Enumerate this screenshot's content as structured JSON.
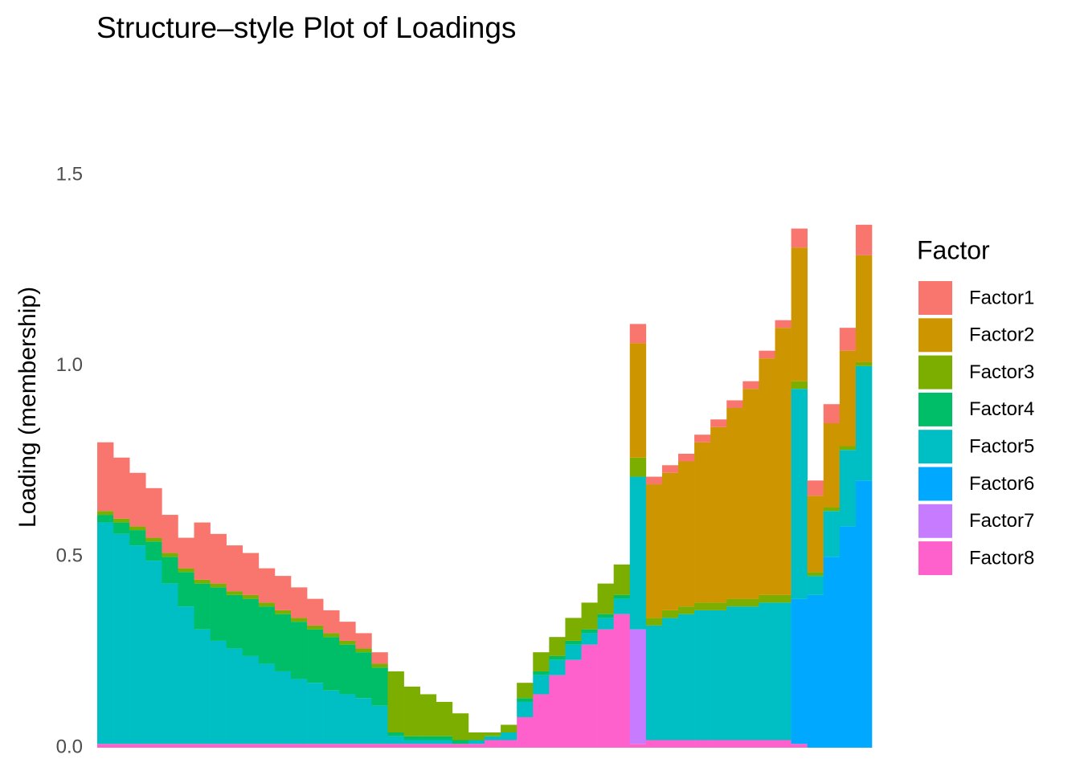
{
  "chart_data": {
    "type": "stacked-bar",
    "title": "Structure–style Plot of Loadings",
    "y_label": "Loading (membership)",
    "legend_title": "Factor",
    "legend_position": "right",
    "ylim": [
      0,
      1.72
    ],
    "yticks": [
      {
        "value": 0,
        "label": "0.0"
      },
      0.5,
      {
        "value": 1,
        "label": "1.0"
      },
      1.5
    ],
    "categories": [
      null,
      null,
      null,
      null,
      null,
      null,
      null,
      null,
      null,
      null,
      null,
      null,
      null,
      null,
      null,
      null,
      null,
      null,
      null,
      null,
      null,
      null,
      null,
      null,
      null,
      null,
      null,
      null,
      null,
      null,
      null,
      null,
      null,
      null,
      null,
      null,
      null,
      null,
      null,
      null,
      null,
      null,
      null,
      null,
      null,
      null,
      null,
      null
    ],
    "series": [
      {
        "name": "Factor1",
        "color": "#F8766D",
        "values": [
          0.18,
          0.16,
          0.14,
          0.13,
          0.1,
          0.08,
          0.15,
          0.13,
          0.12,
          0.11,
          0.09,
          0.09,
          0.08,
          0.07,
          0.06,
          0.05,
          0.04,
          0.03,
          0,
          0,
          0,
          0,
          0,
          0,
          0,
          0,
          0,
          0,
          0,
          0,
          0,
          0,
          0,
          0.05,
          0.02,
          0.02,
          0.02,
          0.02,
          0.02,
          0.02,
          0.02,
          0.02,
          0.02,
          0.05,
          0.04,
          0.05,
          0.06,
          0.08
        ]
      },
      {
        "name": "Factor2",
        "color": "#CD9600",
        "values": [
          0,
          0,
          0,
          0,
          0,
          0,
          0,
          0,
          0,
          0,
          0,
          0,
          0,
          0,
          0,
          0,
          0,
          0,
          0,
          0,
          0,
          0,
          0,
          0,
          0,
          0,
          0,
          0,
          0,
          0,
          0,
          0,
          0,
          0.3,
          0.35,
          0.36,
          0.38,
          0.42,
          0.46,
          0.5,
          0.55,
          0.62,
          0.7,
          0.35,
          0.2,
          0.22,
          0.25,
          0.28
        ]
      },
      {
        "name": "Factor3",
        "color": "#7CAE00",
        "values": [
          0.01,
          0.01,
          0.01,
          0.01,
          0.01,
          0.01,
          0.01,
          0.01,
          0.01,
          0.01,
          0.01,
          0.01,
          0.01,
          0.01,
          0.01,
          0.01,
          0.01,
          0.01,
          0.16,
          0.13,
          0.11,
          0.09,
          0.07,
          0.02,
          0.01,
          0.02,
          0.04,
          0.05,
          0.05,
          0.06,
          0.07,
          0.08,
          0.08,
          0.05,
          0.02,
          0.02,
          0.02,
          0.02,
          0.02,
          0.02,
          0.02,
          0.02,
          0.02,
          0.02,
          0.01,
          0.01,
          0.01,
          0.01
        ]
      },
      {
        "name": "Factor4",
        "color": "#00BE67",
        "values": [
          0.02,
          0.03,
          0.04,
          0.05,
          0.07,
          0.09,
          0.12,
          0.14,
          0.14,
          0.15,
          0.15,
          0.15,
          0.15,
          0.14,
          0.14,
          0.13,
          0.12,
          0.1,
          0.01,
          0.01,
          0.01,
          0.01,
          0.01,
          0,
          0,
          0,
          0.01,
          0.01,
          0.01,
          0.01,
          0.01,
          0.01,
          0.01,
          0,
          0,
          0,
          0,
          0,
          0,
          0,
          0,
          0,
          0,
          0,
          0,
          0,
          0,
          0
        ]
      },
      {
        "name": "Factor5",
        "color": "#00BFC4",
        "values": [
          0.58,
          0.55,
          0.52,
          0.48,
          0.42,
          0.36,
          0.3,
          0.27,
          0.25,
          0.23,
          0.21,
          0.19,
          0.17,
          0.16,
          0.14,
          0.13,
          0.12,
          0.1,
          0.02,
          0.01,
          0.01,
          0.01,
          0,
          0.01,
          0.01,
          0.02,
          0.04,
          0.05,
          0.04,
          0.04,
          0.03,
          0.03,
          0.04,
          0.4,
          0.3,
          0.32,
          0.33,
          0.34,
          0.34,
          0.35,
          0.35,
          0.36,
          0.36,
          0.55,
          0.05,
          0.12,
          0.2,
          0.3
        ]
      },
      {
        "name": "Factor6",
        "color": "#00A9FF",
        "values": [
          0,
          0,
          0,
          0,
          0,
          0,
          0,
          0,
          0,
          0,
          0,
          0,
          0,
          0,
          0,
          0,
          0,
          0,
          0,
          0,
          0,
          0,
          0,
          0,
          0,
          0,
          0,
          0,
          0,
          0,
          0,
          0,
          0,
          0,
          0,
          0,
          0,
          0,
          0,
          0,
          0,
          0,
          0,
          0.38,
          0.4,
          0.5,
          0.58,
          0.7
        ]
      },
      {
        "name": "Factor7",
        "color": "#C77CFF",
        "values": [
          0,
          0,
          0,
          0,
          0,
          0,
          0,
          0,
          0,
          0,
          0,
          0,
          0,
          0,
          0,
          0,
          0,
          0,
          0,
          0,
          0,
          0,
          0,
          0,
          0,
          0,
          0,
          0,
          0,
          0,
          0,
          0,
          0,
          0.3,
          0,
          0,
          0,
          0,
          0,
          0,
          0,
          0,
          0,
          0,
          0,
          0,
          0,
          0
        ]
      },
      {
        "name": "Factor8",
        "color": "#FF61CC",
        "values": [
          0.01,
          0.01,
          0.01,
          0.01,
          0.01,
          0.01,
          0.01,
          0.01,
          0.01,
          0.01,
          0.01,
          0.01,
          0.01,
          0.01,
          0.01,
          0.01,
          0.01,
          0.01,
          0.01,
          0.01,
          0.01,
          0.01,
          0.01,
          0.01,
          0.02,
          0.02,
          0.08,
          0.14,
          0.19,
          0.23,
          0.27,
          0.31,
          0.35,
          0.01,
          0.02,
          0.02,
          0.02,
          0.02,
          0.02,
          0.02,
          0.02,
          0.02,
          0.02,
          0.01,
          0,
          0,
          0,
          0
        ]
      }
    ]
  }
}
